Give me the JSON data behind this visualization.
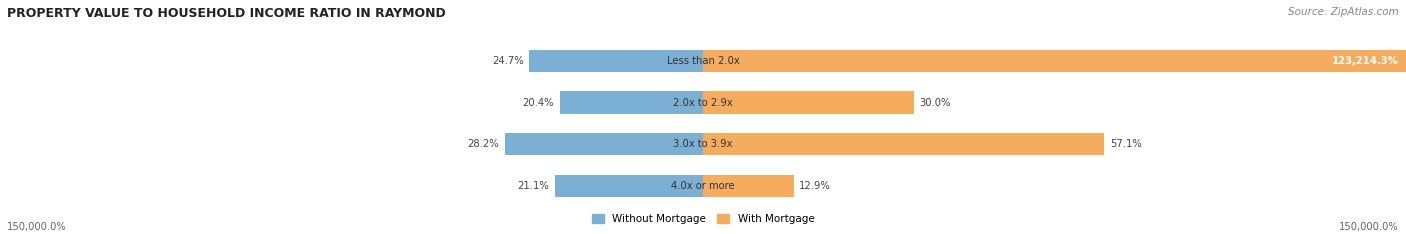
{
  "title": "PROPERTY VALUE TO HOUSEHOLD INCOME RATIO IN RAYMOND",
  "source": "Source: ZipAtlas.com",
  "categories": [
    "Less than 2.0x",
    "2.0x to 2.9x",
    "3.0x to 3.9x",
    "4.0x or more"
  ],
  "without_mortgage": [
    24.7,
    20.4,
    28.2,
    21.1
  ],
  "with_mortgage": [
    123214.3,
    30.0,
    57.1,
    12.9
  ],
  "with_mortgage_labels": [
    "123,214.3%",
    "30.0%",
    "57.1%",
    "12.9%"
  ],
  "without_mortgage_labels": [
    "24.7%",
    "20.4%",
    "28.2%",
    "21.1%"
  ],
  "without_mortgage_color": "#7bafd4",
  "with_mortgage_color": "#f5ac5e",
  "row_bg_colors": [
    "#efefef",
    "#e8e8e8",
    "#efefef",
    "#e8e8e8"
  ],
  "axis_label_left": "150,000.0%",
  "axis_label_right": "150,000.0%",
  "legend_without": "Without Mortgage",
  "legend_with": "With Mortgage",
  "max_scale": 150000.0
}
